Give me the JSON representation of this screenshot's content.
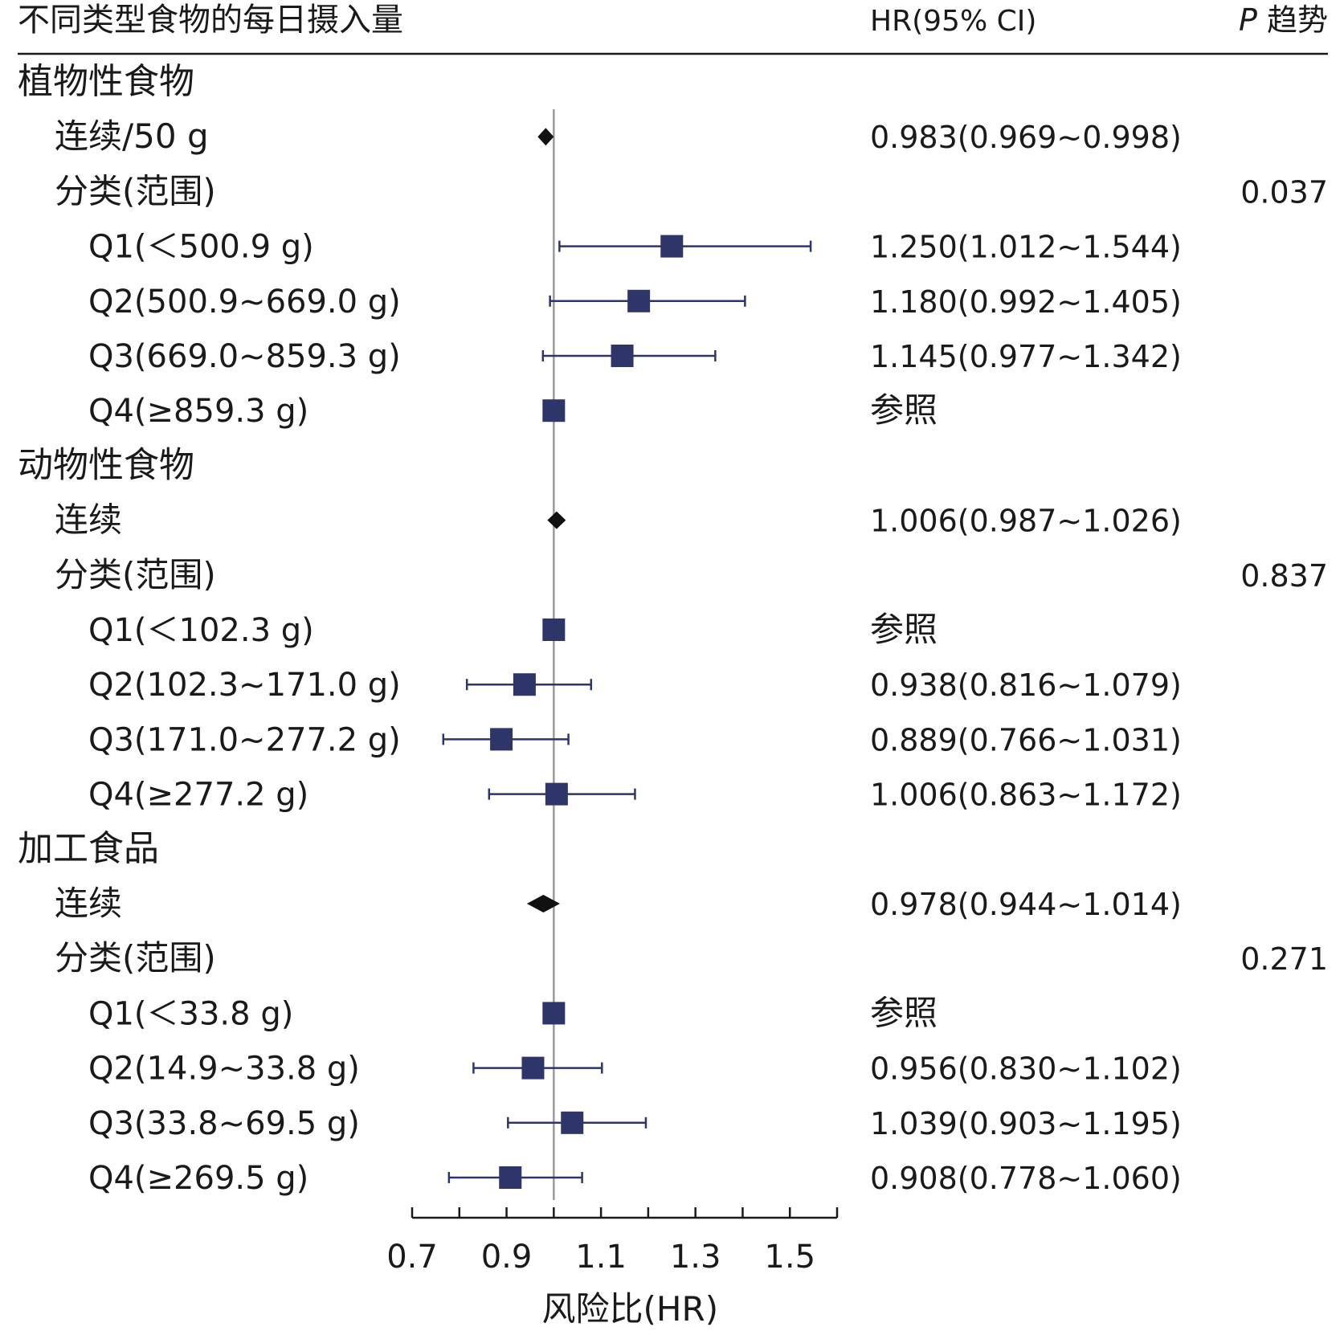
{
  "header": {
    "col_label": "不同类型食物的每日摄入量",
    "col_hr": "HR(95% CI)",
    "col_p_italic": "P",
    "col_p_rest": " 趋势"
  },
  "chart_data": {
    "type": "forest",
    "xlabel": "风险比(HR)",
    "xlim": [
      0.7,
      1.6
    ],
    "xticks": [
      0.7,
      0.8,
      0.9,
      1.0,
      1.1,
      1.2,
      1.3,
      1.4,
      1.5,
      1.6
    ],
    "xtick_labels": [
      {
        "value": 0.7,
        "label": "0.7"
      },
      {
        "value": 0.9,
        "label": "0.9"
      },
      {
        "value": 1.1,
        "label": "1.1"
      },
      {
        "value": 1.3,
        "label": "1.3"
      },
      {
        "value": 1.5,
        "label": "1.5"
      }
    ],
    "reference_line": 1.0,
    "rows": [
      {
        "label": "植物性食物",
        "level": 0
      },
      {
        "label": "连续/50 g",
        "level": 1,
        "hr": 0.983,
        "lo": 0.969,
        "hi": 0.998,
        "marker": "diamond",
        "hr_text": "0.983(0.969~0.998)"
      },
      {
        "label": "分类(范围)",
        "level": 1,
        "p_trend": "0.037"
      },
      {
        "label": "Q1(＜500.9 g)",
        "level": 2,
        "hr": 1.25,
        "lo": 1.012,
        "hi": 1.544,
        "marker": "square",
        "hr_text": "1.250(1.012~1.544)"
      },
      {
        "label": "Q2(500.9~669.0 g)",
        "level": 2,
        "hr": 1.18,
        "lo": 0.992,
        "hi": 1.405,
        "marker": "square",
        "hr_text": "1.180(0.992~1.405)"
      },
      {
        "label": "Q3(669.0~859.3 g)",
        "level": 2,
        "hr": 1.145,
        "lo": 0.977,
        "hi": 1.342,
        "marker": "square",
        "hr_text": "1.145(0.977~1.342)"
      },
      {
        "label": "Q4(≥859.3 g)",
        "level": 2,
        "hr": 1.0,
        "marker": "square",
        "hr_text": "参照"
      },
      {
        "label": "动物性食物",
        "level": 0
      },
      {
        "label": "连续",
        "level": 1,
        "hr": 1.006,
        "lo": 0.987,
        "hi": 1.026,
        "marker": "diamond",
        "hr_text": "1.006(0.987~1.026)"
      },
      {
        "label": "分类(范围)",
        "level": 1,
        "p_trend": "0.837"
      },
      {
        "label": "Q1(＜102.3 g)",
        "level": 2,
        "hr": 1.0,
        "marker": "square",
        "hr_text": "参照"
      },
      {
        "label": "Q2(102.3~171.0 g)",
        "level": 2,
        "hr": 0.938,
        "lo": 0.816,
        "hi": 1.079,
        "marker": "square",
        "hr_text": "0.938(0.816~1.079)"
      },
      {
        "label": "Q3(171.0~277.2 g)",
        "level": 2,
        "hr": 0.889,
        "lo": 0.766,
        "hi": 1.031,
        "marker": "square",
        "hr_text": "0.889(0.766~1.031)"
      },
      {
        "label": "Q4(≥277.2 g)",
        "level": 2,
        "hr": 1.006,
        "lo": 0.863,
        "hi": 1.172,
        "marker": "square",
        "hr_text": "1.006(0.863~1.172)"
      },
      {
        "label": "加工食品",
        "level": 0
      },
      {
        "label": "连续",
        "level": 1,
        "hr": 0.978,
        "lo": 0.944,
        "hi": 1.014,
        "marker": "diamond",
        "hr_text": "0.978(0.944~1.014)"
      },
      {
        "label": "分类(范围)",
        "level": 1,
        "p_trend": "0.271"
      },
      {
        "label": "Q1(＜33.8 g)",
        "level": 2,
        "hr": 1.0,
        "marker": "square",
        "hr_text": "参照"
      },
      {
        "label": "Q2(14.9~33.8 g)",
        "level": 2,
        "hr": 0.956,
        "lo": 0.83,
        "hi": 1.102,
        "marker": "square",
        "hr_text": "0.956(0.830~1.102)"
      },
      {
        "label": "Q3(33.8~69.5 g)",
        "level": 2,
        "hr": 1.039,
        "lo": 0.903,
        "hi": 1.195,
        "marker": "square",
        "hr_text": "1.039(0.903~1.195)"
      },
      {
        "label": "Q4(≥269.5 g)",
        "level": 2,
        "hr": 0.908,
        "lo": 0.778,
        "hi": 1.06,
        "marker": "square",
        "hr_text": "0.908(0.778~1.060)"
      }
    ],
    "colors": {
      "square": "#2e3568",
      "ci_line": "#2e3568",
      "diamond": "#111111",
      "reference_line": "#9a9a9a",
      "axis": "#1a1a1a",
      "text": "#1a1a1a"
    }
  }
}
